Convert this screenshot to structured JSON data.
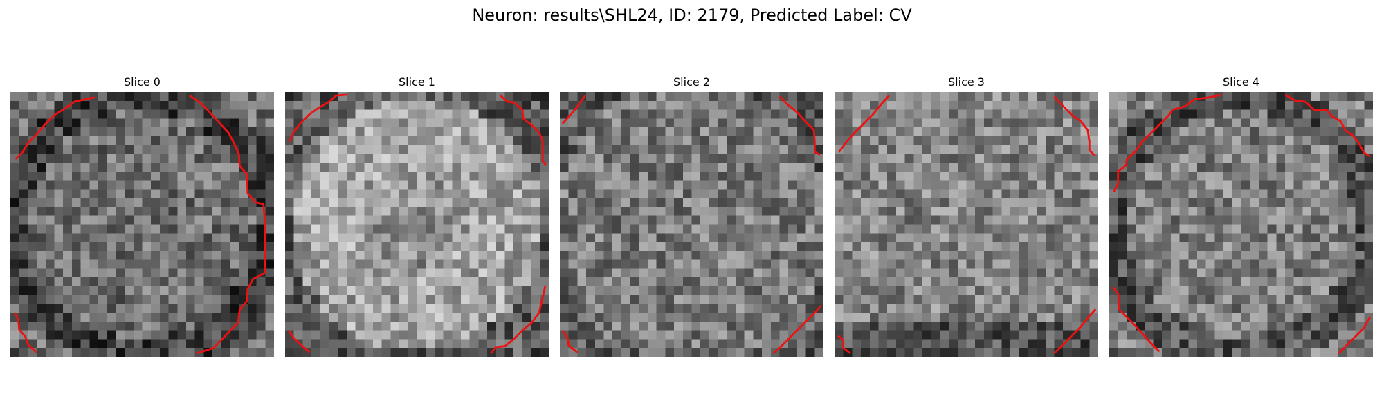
{
  "figure": {
    "title": "Neuron: results\\SHL24, ID: 2179, Predicted Label: CV"
  },
  "slices": [
    {
      "title": "Slice 0"
    },
    {
      "title": "Slice 1"
    },
    {
      "title": "Slice 2"
    },
    {
      "title": "Slice 3"
    },
    {
      "title": "Slice 4"
    }
  ],
  "colors": {
    "contour": "#ee1111",
    "background": "#ffffff",
    "colormap": "grayscale"
  }
}
